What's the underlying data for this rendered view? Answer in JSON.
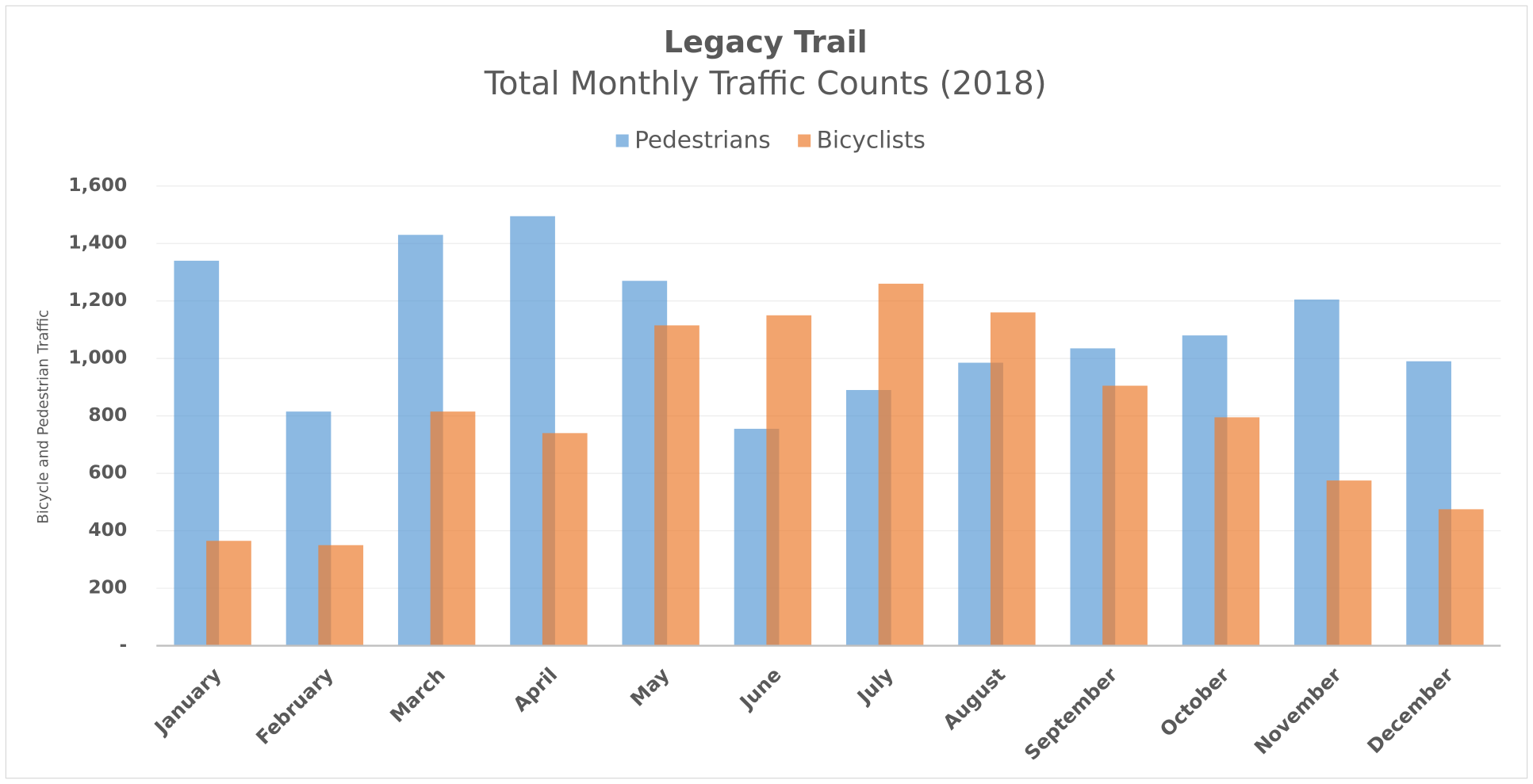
{
  "chart_data": {
    "type": "bar",
    "title": "Legacy Trail",
    "subtitle": "Total Monthly Traffic Counts (2018)",
    "ylabel": "Bicycle and Pedestrian Traffic",
    "categories": [
      "January",
      "February",
      "March",
      "April",
      "May",
      "June",
      "July",
      "August",
      "September",
      "October",
      "November",
      "December"
    ],
    "series": [
      {
        "name": "Pedestrians",
        "color": "#5b9bd5",
        "values": [
          1340,
          815,
          1430,
          1495,
          1270,
          755,
          890,
          985,
          1035,
          1080,
          1205,
          990
        ]
      },
      {
        "name": "Bicyclists",
        "color": "#ed7d31",
        "values": [
          365,
          350,
          815,
          740,
          1115,
          1150,
          1260,
          1160,
          905,
          795,
          575,
          475
        ]
      }
    ],
    "ylim": [
      0,
      1600
    ],
    "yticks": [
      {
        "value": 0,
        "label": "-"
      },
      200,
      400,
      600,
      800,
      {
        "value": 1000,
        "label": "1,000"
      },
      {
        "value": 1200,
        "label": "1,200"
      },
      {
        "value": 1400,
        "label": "1,400"
      },
      {
        "value": 1600,
        "label": "1,600"
      }
    ],
    "grid": true,
    "legend": "top"
  }
}
